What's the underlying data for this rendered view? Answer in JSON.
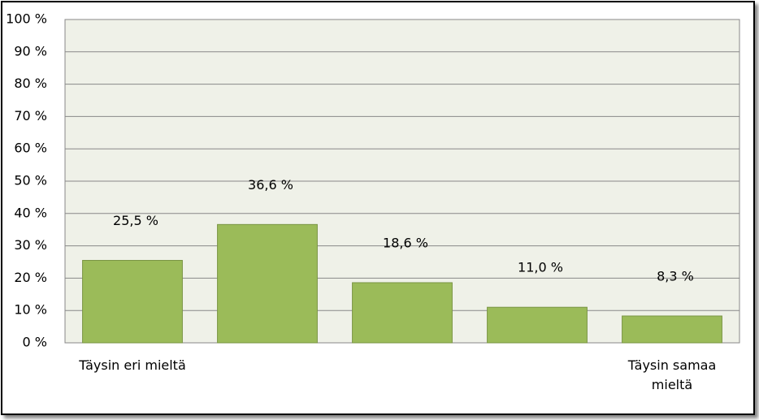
{
  "chart_data": {
    "type": "bar",
    "categories": [
      "Täysin eri mieltä",
      null,
      null,
      null,
      "Täysin samaa mieltä"
    ],
    "values": [
      25.5,
      36.6,
      18.6,
      11.0,
      8.3
    ],
    "value_labels": [
      "25,5 %",
      "36,6 %",
      "18,6 %",
      "11,0 %",
      "8,3 %"
    ],
    "color": "#9bbb59",
    "ylim": [
      0,
      100
    ],
    "yticks": [
      {
        "value": 0,
        "label": "0 %"
      },
      {
        "value": 10,
        "label": "10 %"
      },
      {
        "value": 20,
        "label": "20 %"
      },
      {
        "value": 30,
        "label": "30 %"
      },
      {
        "value": 40,
        "label": "40 %"
      },
      {
        "value": 50,
        "label": "50 %"
      },
      {
        "value": 60,
        "label": "60 %"
      },
      {
        "value": 70,
        "label": "70 %"
      },
      {
        "value": 80,
        "label": "80 %"
      },
      {
        "value": 90,
        "label": "90 %"
      },
      {
        "value": 100,
        "label": "100 %"
      }
    ],
    "grid": true
  }
}
